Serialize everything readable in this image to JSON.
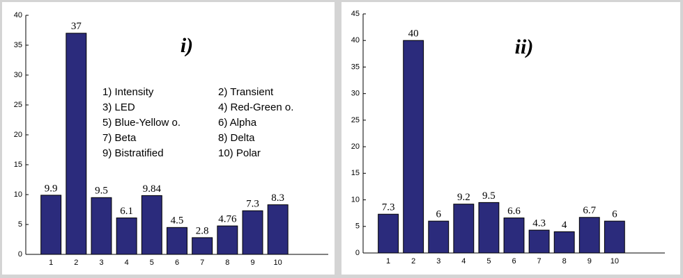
{
  "chart_data": [
    {
      "type": "bar",
      "title": "i)",
      "x": [
        1,
        2,
        3,
        4,
        5,
        6,
        7,
        8,
        9,
        10
      ],
      "values": [
        9.9,
        37,
        9.5,
        6.1,
        9.84,
        4.5,
        2.8,
        4.76,
        7.3,
        8.3
      ],
      "color": "#2b2b7c",
      "xlim": [
        0,
        12
      ],
      "xticks": [
        1,
        2,
        3,
        4,
        5,
        6,
        7,
        8,
        9,
        10
      ],
      "ylim": [
        0,
        40
      ],
      "yticks": [
        0,
        5,
        10,
        15,
        20,
        25,
        30,
        35,
        40
      ],
      "annotations": [
        "1) Intensity",
        "2) Transient",
        "3) LED",
        "4) Red-Green o.",
        "5) Blue-Yellow o.",
        "6) Alpha",
        "7) Beta",
        "8) Delta",
        "9) Bistratified",
        "10) Polar"
      ]
    },
    {
      "type": "bar",
      "title": "ii)",
      "x": [
        1,
        2,
        3,
        4,
        5,
        6,
        7,
        8,
        9,
        10
      ],
      "values": [
        7.3,
        40,
        6,
        9.2,
        9.5,
        6.6,
        4.3,
        4,
        6.7,
        6
      ],
      "color": "#2b2b7c",
      "xlim": [
        0,
        12
      ],
      "xticks": [
        1,
        2,
        3,
        4,
        5,
        6,
        7,
        8,
        9,
        10
      ],
      "ylim": [
        0,
        45
      ],
      "yticks": [
        0,
        5,
        10,
        15,
        20,
        25,
        30,
        35,
        40,
        45
      ]
    }
  ]
}
